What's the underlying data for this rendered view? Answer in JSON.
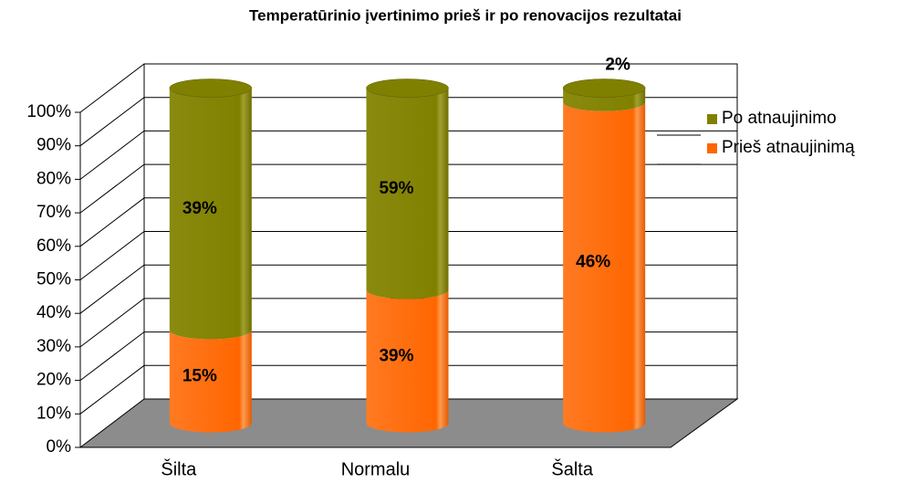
{
  "chart_data": {
    "type": "cylinder-stacked",
    "title": "Temperatūrinio įvertinimo prieš ir po renovacijos rezultatai",
    "categories": [
      "Šilta",
      "Normalu",
      "Šalta"
    ],
    "stacking": "percent",
    "series": [
      {
        "name": "Prieš atnaujinimą",
        "color": "#ff6600",
        "values": [
          15,
          39,
          46
        ],
        "value_labels": [
          "15%",
          "39%",
          "46%"
        ]
      },
      {
        "name": "Po atnaujinimo",
        "color": "#808000",
        "values": [
          39,
          59,
          2
        ],
        "value_labels": [
          "39%",
          "59%",
          "2%"
        ]
      }
    ],
    "ylim": [
      0,
      100
    ],
    "yticks": [
      {
        "value": 0,
        "label": "0%"
      },
      {
        "value": 10,
        "label": "10%"
      },
      {
        "value": 20,
        "label": "20%"
      },
      {
        "value": 30,
        "label": "30%"
      },
      {
        "value": 40,
        "label": "40%"
      },
      {
        "value": 50,
        "label": "50%"
      },
      {
        "value": 60,
        "label": "60%"
      },
      {
        "value": 70,
        "label": "70%"
      },
      {
        "value": 80,
        "label": "80%"
      },
      {
        "value": 90,
        "label": "90%"
      },
      {
        "value": 100,
        "label": "100%"
      }
    ],
    "grid": true,
    "legend": "right"
  }
}
